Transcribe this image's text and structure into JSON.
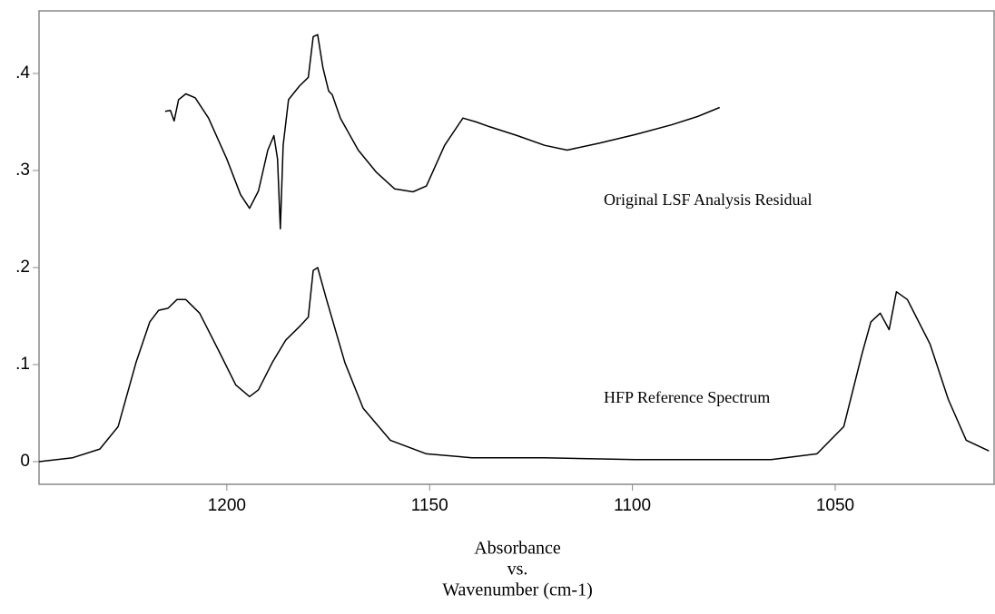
{
  "chart_data": {
    "type": "line",
    "x_label": [
      "Absorbance",
      "vs.",
      "Wavenumber (cm-1)"
    ],
    "xlim": [
      1246.3,
      1010.6
    ],
    "ylim": [
      -0.0234,
      0.4645
    ],
    "xticks": [
      1200,
      1150,
      1100,
      1050
    ],
    "yticks": [
      0,
      {
        "value": 0.1,
        "label": ".1"
      },
      {
        "value": 0.2,
        "label": ".2"
      },
      {
        "value": 0.3,
        "label": ".3"
      },
      {
        "value": 0.4,
        "label": ".4"
      }
    ],
    "grid": false,
    "series": [
      {
        "name": "Original LSF Analysis Residual",
        "color": "#000000",
        "x": [
          1215.2,
          1213.9,
          1213.0,
          1211.9,
          1210.1,
          1207.8,
          1204.5,
          1200,
          1196.6,
          1194.4,
          1192.2,
          1189.9,
          1188.4,
          1187.5,
          1186.8,
          1186.1,
          1184.8,
          1182.1,
          1179.9,
          1178.7,
          1177.6,
          1176.3,
          1174.9,
          1174.0,
          1172.0,
          1167.6,
          1163.1,
          1158.6,
          1154.1,
          1150.8,
          1146.3,
          1141.8,
          1138.5,
          1135.1,
          1128.4,
          1121.7,
          1116.1,
          1108.3,
          1099.3,
          1090.4,
          1083.7,
          1078.5
        ],
        "values": [
          0.361,
          0.362,
          0.351,
          0.373,
          0.379,
          0.375,
          0.354,
          0.312,
          0.275,
          0.261,
          0.279,
          0.321,
          0.336,
          0.312,
          0.24,
          0.326,
          0.373,
          0.387,
          0.396,
          0.438,
          0.44,
          0.406,
          0.382,
          0.378,
          0.354,
          0.321,
          0.298,
          0.281,
          0.278,
          0.284,
          0.326,
          0.354,
          0.35,
          0.345,
          0.336,
          0.326,
          0.321,
          0.328,
          0.337,
          0.347,
          0.356,
          0.365
        ]
      },
      {
        "name": "HFP Reference Spectrum",
        "color": "#000000",
        "x": [
          1246.3,
          1238.0,
          1231.3,
          1226.8,
          1222.4,
          1219.0,
          1216.8,
          1214.5,
          1212.3,
          1210.1,
          1206.7,
          1202.2,
          1197.8,
          1194.4,
          1192.2,
          1188.8,
          1185.5,
          1182.1,
          1179.9,
          1178.7,
          1177.6,
          1175.4,
          1170.9,
          1166.4,
          1159.7,
          1150.8,
          1139.6,
          1121.7,
          1099.3,
          1065.8,
          1054.5,
          1047.9,
          1043.4,
          1041.2,
          1038.9,
          1036.7,
          1034.9,
          1032.2,
          1030.0,
          1026.6,
          1022.1,
          1017.7,
          1012.1
        ],
        "values": [
          0,
          0.004,
          0.013,
          0.036,
          0.102,
          0.144,
          0.156,
          0.158,
          0.167,
          0.167,
          0.153,
          0.116,
          0.079,
          0.067,
          0.074,
          0.102,
          0.125,
          0.139,
          0.149,
          0.197,
          0.2,
          0.167,
          0.102,
          0.055,
          0.022,
          0.008,
          0.004,
          0.004,
          0.002,
          0.002,
          0.008,
          0.036,
          0.111,
          0.144,
          0.153,
          0.136,
          0.175,
          0.167,
          0.149,
          0.121,
          0.064,
          0.022,
          0.011
        ]
      }
    ]
  }
}
